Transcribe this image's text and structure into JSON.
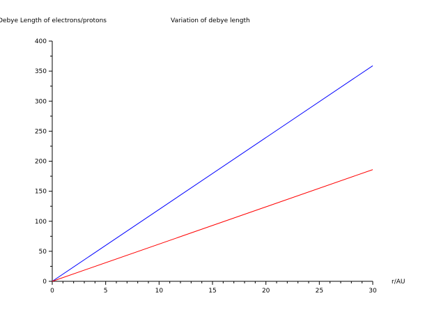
{
  "chart_data": {
    "type": "line",
    "title": "Variation of debye length",
    "ylabel": "Debye Length of electrons/protons",
    "xlabel": "r/AU",
    "xlim": [
      0,
      30
    ],
    "ylim": [
      0,
      400
    ],
    "x_ticks": [
      0,
      5,
      10,
      15,
      20,
      25,
      30
    ],
    "y_ticks": [
      0,
      50,
      100,
      150,
      200,
      250,
      300,
      350,
      400
    ],
    "grid": false,
    "series": [
      {
        "color": "#0000ff",
        "x": [
          0,
          30
        ],
        "y": [
          0,
          359
        ]
      },
      {
        "color": "#ff0000",
        "x": [
          0,
          30
        ],
        "y": [
          0,
          186
        ]
      }
    ]
  }
}
